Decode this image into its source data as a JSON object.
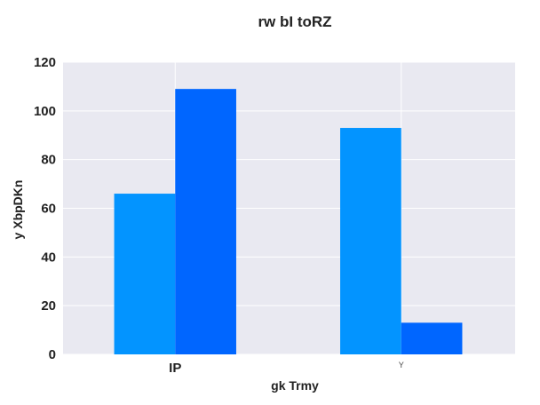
{
  "chart_data": {
    "type": "bar",
    "title": "rw bI toRZ",
    "xlabel": "gk Trmy",
    "ylabel": "y XbpDKn",
    "categories": [
      "IP",
      "Y"
    ],
    "series": [
      {
        "values": [
          66,
          93
        ],
        "color": "#0394ff"
      },
      {
        "values": [
          109,
          13
        ],
        "color": "#0066ff"
      }
    ],
    "ylim": [
      0,
      120
    ],
    "yticks": [
      0,
      20,
      40,
      60,
      80,
      100,
      120
    ],
    "grid": true,
    "background": "#e9e9f1",
    "legend": "none"
  }
}
